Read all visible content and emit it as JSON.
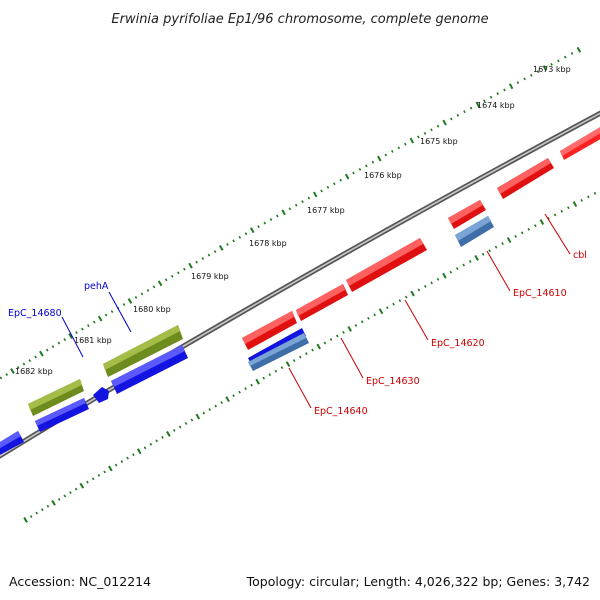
{
  "title": "Erwinia pyrifoliae Ep1/96 chromosome, complete genome",
  "footer": {
    "accession": "Accession: NC_012214",
    "topology": "Topology: circular; Length: 4,026,322 bp; Genes: 3,742"
  },
  "colors": {
    "backbone": "#7a7a7a",
    "tick": "#1e7a1e",
    "forward_gene": "#ee1111",
    "forward_gene_highlight": "#7a9a2a",
    "reverse_gene": "#1111ee",
    "reverse_gene_alt": "#4a7ab8",
    "label_forward": "#cc0000",
    "label_reverse": "#0000cc"
  },
  "scale": {
    "outer_tick_labels": [
      "1673 kbp",
      "1674 kbp",
      "1675 kbp",
      "1676 kbp",
      "1677 kbp",
      "1678 kbp",
      "1679 kbp",
      "1680 kbp",
      "1681 kbp",
      "1682 kbp"
    ]
  },
  "genes": {
    "labels": [
      {
        "name": "cbl",
        "strand": "forward"
      },
      {
        "name": "EpC_14610",
        "strand": "forward"
      },
      {
        "name": "EpC_14620",
        "strand": "forward"
      },
      {
        "name": "EpC_14630",
        "strand": "forward"
      },
      {
        "name": "EpC_14640",
        "strand": "forward"
      },
      {
        "name": "pehA",
        "strand": "reverse"
      },
      {
        "name": "EpC_14680",
        "strand": "reverse"
      }
    ]
  }
}
